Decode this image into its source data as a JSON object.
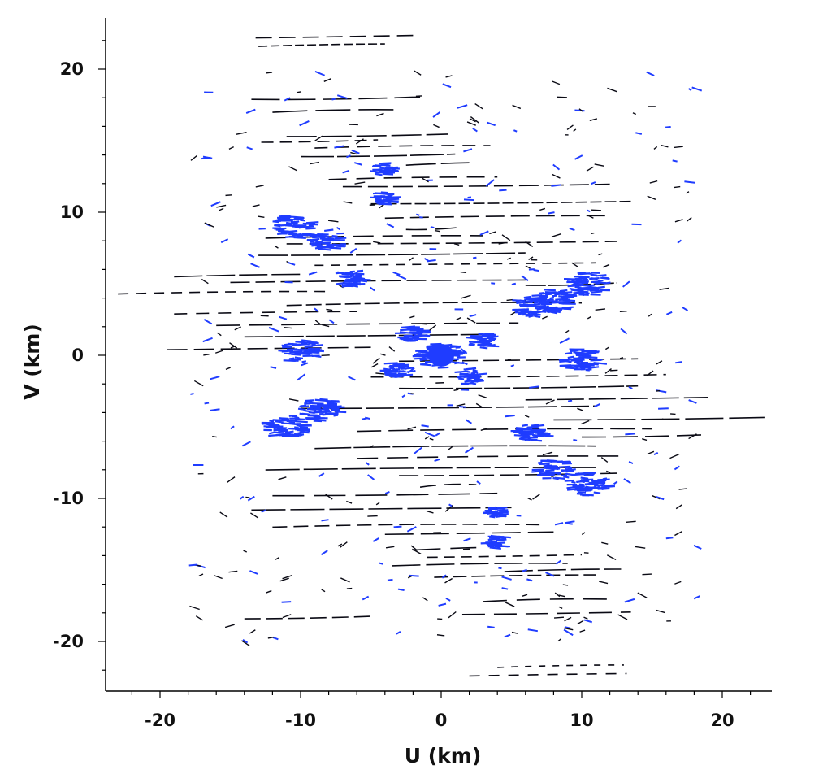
{
  "chart_data": {
    "type": "scatter",
    "title": "",
    "xlabel": "U (km)",
    "ylabel": "V (km)",
    "xlim": [
      -23.5,
      23.5
    ],
    "ylim": [
      -23.5,
      23.5
    ],
    "xticks": [
      -20,
      -10,
      0,
      10,
      20
    ],
    "yticks": [
      20,
      10,
      0,
      -10,
      -20
    ],
    "xtick_labels": [
      "-20",
      "-10",
      "0",
      "10",
      "20"
    ],
    "ytick_labels": [
      "20",
      "10",
      "0",
      "-10",
      "-20"
    ],
    "minor_tick_step": 2,
    "grid": false,
    "legend": "none",
    "colors": {
      "track": "#0a0a14",
      "core": "#1f3cff",
      "axis": "#000000"
    },
    "description_of_series": "uv-coverage tracks: elongated horizontal baseline arcs plus dense blue clusters; symmetric about origin",
    "series": [
      {
        "kind": "tracks",
        "values": [
          {
            "u0": -13.2,
            "u1": -2.0,
            "v": 22.3
          },
          {
            "u0": -13.5,
            "u1": -1.5,
            "v": 18.0
          },
          {
            "u0": -12.0,
            "u1": -3.0,
            "v": 17.1
          },
          {
            "u0": -11.0,
            "u1": 0.5,
            "v": 15.4
          },
          {
            "u0": -12.8,
            "u1": -4.5,
            "v": 15.0
          },
          {
            "u0": -9.0,
            "u1": 3.5,
            "v": 14.6
          },
          {
            "u0": -10.0,
            "u1": 1.0,
            "v": 14.0
          },
          {
            "u0": -2.5,
            "u1": 2.0,
            "v": 13.4
          },
          {
            "u0": -8.0,
            "u1": 4.0,
            "v": 12.4
          },
          {
            "u0": -7.0,
            "u1": 12.0,
            "v": 11.9
          },
          {
            "u0": -5.0,
            "u1": 13.5,
            "v": 10.7
          },
          {
            "u0": -4.0,
            "u1": 12.0,
            "v": 9.7
          },
          {
            "u0": -2.5,
            "u1": 1.5,
            "v": 8.9
          },
          {
            "u0": -12.5,
            "u1": 3.0,
            "v": 8.3
          },
          {
            "u0": -11.0,
            "u1": 12.5,
            "v": 7.9
          },
          {
            "u0": -13.0,
            "u1": 6.0,
            "v": 7.1
          },
          {
            "u0": -9.0,
            "u1": 11.0,
            "v": 6.4
          },
          {
            "u0": -19.0,
            "u1": -10.0,
            "v": 5.6
          },
          {
            "u0": -15.0,
            "u1": 6.0,
            "v": 5.2
          },
          {
            "u0": 6.0,
            "u1": 12.5,
            "v": 5.0
          },
          {
            "u0": -23.0,
            "u1": -8.0,
            "v": 4.4
          },
          {
            "u0": -11.0,
            "u1": 10.0,
            "v": 3.6
          },
          {
            "u0": -19.0,
            "u1": -6.0,
            "v": 3.0
          },
          {
            "u0": -16.0,
            "u1": 5.5,
            "v": 2.2
          },
          {
            "u0": -14.0,
            "u1": 3.0,
            "v": 1.4
          },
          {
            "u0": -19.5,
            "u1": -5.0,
            "v": 0.5
          },
          {
            "u0": -3.0,
            "u1": 14.0,
            "v": -0.3
          },
          {
            "u0": -5.0,
            "u1": 16.0,
            "v": -1.4
          },
          {
            "u0": -3.0,
            "u1": 14.0,
            "v": -2.2
          },
          {
            "u0": 6.0,
            "u1": 19.0,
            "v": -3.0
          },
          {
            "u0": -10.0,
            "u1": 11.0,
            "v": -3.6
          },
          {
            "u0": 8.0,
            "u1": 23.0,
            "v": -4.4
          },
          {
            "u0": -6.0,
            "u1": 15.0,
            "v": -5.2
          },
          {
            "u0": 10.0,
            "u1": 19.0,
            "v": -5.6
          },
          {
            "u0": -9.0,
            "u1": 11.0,
            "v": -6.4
          },
          {
            "u0": -6.0,
            "u1": 13.0,
            "v": -7.1
          },
          {
            "u0": -12.5,
            "u1": 11.0,
            "v": -7.9
          },
          {
            "u0": -3.0,
            "u1": 12.5,
            "v": -8.3
          },
          {
            "u0": -1.5,
            "u1": 2.5,
            "v": -9.1
          },
          {
            "u0": -12.0,
            "u1": 4.0,
            "v": -9.7
          },
          {
            "u0": -13.5,
            "u1": 5.0,
            "v": -10.7
          },
          {
            "u0": -12.0,
            "u1": 7.0,
            "v": -11.9
          },
          {
            "u0": -4.0,
            "u1": 8.0,
            "v": -12.4
          },
          {
            "u0": -2.0,
            "u1": 2.5,
            "v": -13.5
          },
          {
            "u0": -1.0,
            "u1": 10.0,
            "v": -14.0
          },
          {
            "u0": -3.5,
            "u1": 9.0,
            "v": -14.6
          },
          {
            "u0": 4.5,
            "u1": 12.8,
            "v": -15.0
          },
          {
            "u0": -0.5,
            "u1": 11.0,
            "v": -15.4
          },
          {
            "u0": 3.0,
            "u1": 12.0,
            "v": -17.1
          },
          {
            "u0": 1.5,
            "u1": 13.5,
            "v": -18.0
          },
          {
            "u0": -14.0,
            "u1": -5.0,
            "v": -18.3
          },
          {
            "u0": 2.0,
            "u1": 13.2,
            "v": -22.3
          },
          {
            "u0": 4.0,
            "u1": 13.0,
            "v": -21.7
          },
          {
            "u0": -13.0,
            "u1": -4.0,
            "v": 21.7
          }
        ]
      },
      {
        "kind": "clusters",
        "values": [
          {
            "u": 0.0,
            "v": 0.0,
            "r": 1.0
          },
          {
            "u": -10.5,
            "v": 9.0,
            "r": 0.9
          },
          {
            "u": -8.0,
            "v": 8.0,
            "r": 0.8
          },
          {
            "u": -6.5,
            "v": 5.4,
            "r": 0.7
          },
          {
            "u": 10.5,
            "v": 5.0,
            "r": 0.9
          },
          {
            "u": 8.0,
            "v": 3.8,
            "r": 0.9
          },
          {
            "u": 6.5,
            "v": 3.4,
            "r": 0.8
          },
          {
            "u": -10.0,
            "v": 0.3,
            "r": 0.9
          },
          {
            "u": 10.0,
            "v": -0.3,
            "r": 0.9
          },
          {
            "u": -8.5,
            "v": -3.8,
            "r": 0.9
          },
          {
            "u": -11.0,
            "v": -5.0,
            "r": 0.9
          },
          {
            "u": 6.5,
            "v": -5.4,
            "r": 0.7
          },
          {
            "u": 8.0,
            "v": -8.0,
            "r": 0.8
          },
          {
            "u": 10.5,
            "v": -9.0,
            "r": 0.9
          },
          {
            "u": -4.0,
            "v": 13.0,
            "r": 0.5
          },
          {
            "u": 4.0,
            "v": -13.0,
            "r": 0.5
          },
          {
            "u": -2.0,
            "v": 1.5,
            "r": 0.6
          },
          {
            "u": 2.0,
            "v": -1.5,
            "r": 0.6
          },
          {
            "u": 3.0,
            "v": 1.0,
            "r": 0.6
          },
          {
            "u": -3.0,
            "v": -1.0,
            "r": 0.6
          },
          {
            "u": -4.0,
            "v": 11.0,
            "r": 0.5
          },
          {
            "u": 4.0,
            "v": -11.0,
            "r": 0.5
          }
        ]
      }
    ]
  }
}
